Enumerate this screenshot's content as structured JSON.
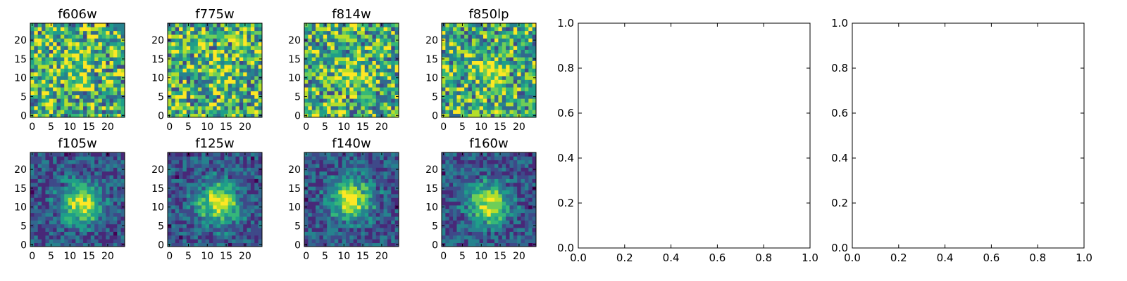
{
  "chart_data": [
    {
      "type": "heatmap",
      "title": "f606w",
      "grid_size": 25,
      "xticks": [
        "0",
        "5",
        "10",
        "15",
        "20"
      ],
      "yticks": [
        "0",
        "5",
        "10",
        "15",
        "20"
      ],
      "source_peak": [
        12,
        13
      ],
      "colormap": "viridis"
    },
    {
      "type": "heatmap",
      "title": "f775w",
      "grid_size": 25,
      "xticks": [
        "0",
        "5",
        "10",
        "15",
        "20"
      ],
      "yticks": [
        "0",
        "5",
        "10",
        "15",
        "20"
      ],
      "source_peak": [
        13,
        12
      ],
      "colormap": "viridis"
    },
    {
      "type": "heatmap",
      "title": "f814w",
      "grid_size": 25,
      "xticks": [
        "0",
        "5",
        "10",
        "15",
        "20"
      ],
      "yticks": [
        "0",
        "5",
        "10",
        "15",
        "20"
      ],
      "source_peak": [
        13,
        11
      ],
      "colormap": "viridis"
    },
    {
      "type": "heatmap",
      "title": "f850lp",
      "grid_size": 25,
      "xticks": [
        "0",
        "5",
        "10",
        "15",
        "20"
      ],
      "yticks": [
        "0",
        "5",
        "10",
        "15",
        "20"
      ],
      "source_peak": [
        12,
        12
      ],
      "colormap": "viridis"
    },
    {
      "type": "heatmap",
      "title": "f105w",
      "grid_size": 25,
      "xticks": [
        "0",
        "5",
        "10",
        "15",
        "20"
      ],
      "yticks": [
        "0",
        "5",
        "10",
        "15",
        "20"
      ],
      "source_peak": [
        13,
        11
      ],
      "colormap": "viridis"
    },
    {
      "type": "heatmap",
      "title": "f125w",
      "grid_size": 25,
      "xticks": [
        "0",
        "5",
        "10",
        "15",
        "20"
      ],
      "yticks": [
        "0",
        "5",
        "10",
        "15",
        "20"
      ],
      "source_peak": [
        13,
        11
      ],
      "colormap": "viridis"
    },
    {
      "type": "heatmap",
      "title": "f140w",
      "grid_size": 25,
      "xticks": [
        "0",
        "5",
        "10",
        "15",
        "20"
      ],
      "yticks": [
        "0",
        "5",
        "10",
        "15",
        "20"
      ],
      "source_peak": [
        12,
        12
      ],
      "colormap": "viridis"
    },
    {
      "type": "heatmap",
      "title": "f160w",
      "grid_size": 25,
      "xticks": [
        "0",
        "5",
        "10",
        "15",
        "20"
      ],
      "yticks": [
        "0",
        "5",
        "10",
        "15",
        "20"
      ],
      "source_peak": [
        12,
        11
      ],
      "colormap": "viridis"
    },
    {
      "type": "scatter",
      "title": "",
      "xlim": [
        0,
        1
      ],
      "ylim": [
        0,
        1
      ],
      "xticks": [
        "0.0",
        "0.2",
        "0.4",
        "0.6",
        "0.8",
        "1.0"
      ],
      "yticks": [
        "0.0",
        "0.2",
        "0.4",
        "0.6",
        "0.8",
        "1.0"
      ],
      "series": []
    },
    {
      "type": "scatter",
      "title": "",
      "xlim": [
        0,
        1
      ],
      "ylim": [
        0,
        1
      ],
      "xticks": [
        "0.0",
        "0.2",
        "0.4",
        "0.6",
        "0.8",
        "1.0"
      ],
      "yticks": [
        "0.0",
        "0.2",
        "0.4",
        "0.6",
        "0.8",
        "1.0"
      ],
      "series": []
    }
  ],
  "colors": {
    "viridis": [
      "#440154",
      "#482878",
      "#3e4989",
      "#31688e",
      "#26828e",
      "#1f9e89",
      "#35b779",
      "#6ece58",
      "#b5de2b",
      "#fde725"
    ],
    "axis": "#000000",
    "background": "#ffffff"
  }
}
